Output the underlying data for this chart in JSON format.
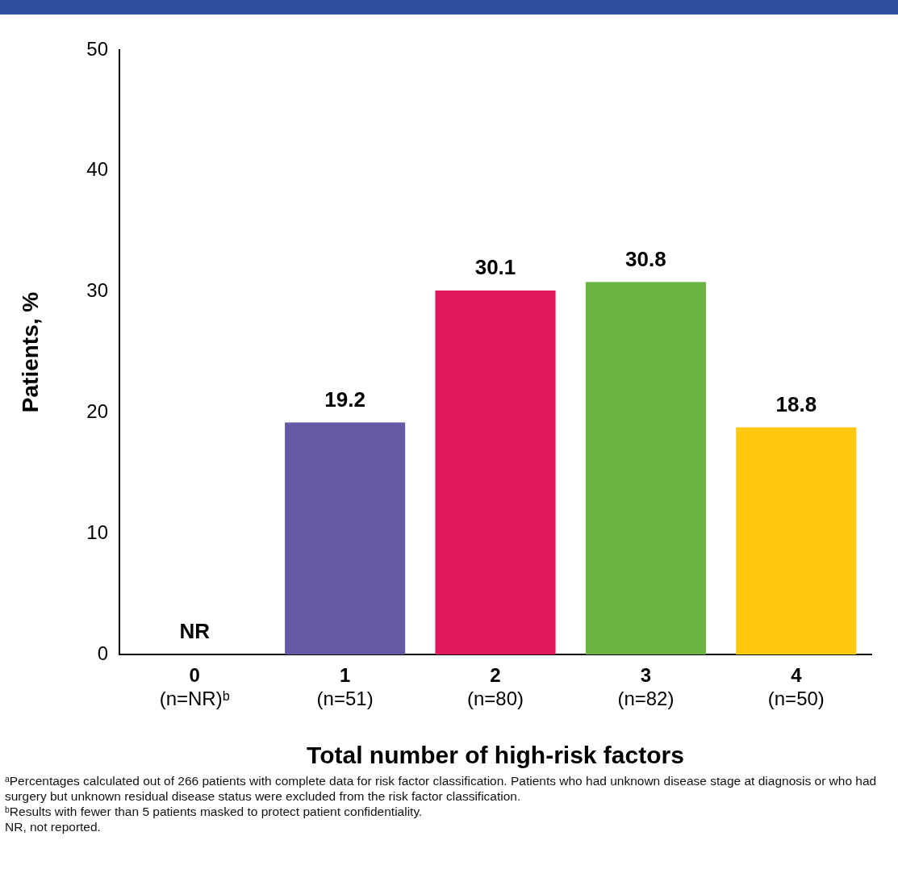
{
  "chart_data": {
    "type": "bar",
    "ylabel": "Patients, %",
    "xlabel": "Total number of high-risk factors",
    "categories": [
      "0\n(n=NR)ᵇ",
      "1\n(n=51)",
      "2\n(n=80)",
      "3\n(n=82)",
      "4\n(n=50)"
    ],
    "values": [
      null,
      19.2,
      30.1,
      30.8,
      18.8
    ],
    "value_labels": [
      "NR",
      "19.2",
      "30.1",
      "30.8",
      "18.8"
    ],
    "colors": [
      null,
      "#6759a6",
      "#e2185f",
      "#69b342",
      "#fec80f"
    ],
    "ylim": [
      0,
      50
    ],
    "yticks": [
      0,
      10,
      20,
      30,
      40,
      50
    ],
    "grid": false,
    "legend": false,
    "annotations": [
      "ᵃPercentages calculated out of 266 patients with complete data for risk factor classification. Patients who had unknown disease stage at diagnosis or who had surgery but unknown residual disease status were excluded from the risk factor classification.",
      "ᵇResults with fewer than 5 patients masked to protect patient confidentiality.",
      "NR, not reported."
    ]
  }
}
